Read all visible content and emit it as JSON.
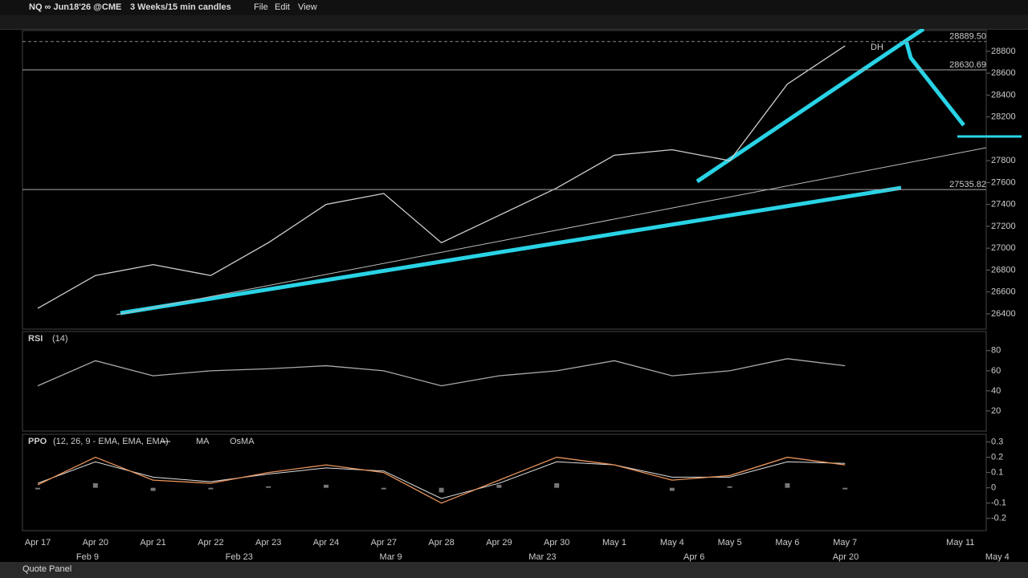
{
  "header": {
    "symbol": "NQ ∞ Jun18'26 @CME",
    "timeframe": "3 Weeks/15 min candles",
    "menu": [
      "File",
      "Edit",
      "View"
    ]
  },
  "chart_data": [
    {
      "type": "line",
      "categories": [
        "Apr 17",
        "Apr 20",
        "Apr 21",
        "Apr 22",
        "Apr 23",
        "Apr 24",
        "Apr 27",
        "Apr 28",
        "Apr 29",
        "Apr 30",
        "May 1",
        "May 4",
        "May 5",
        "May 6",
        "May 7",
        null,
        "May 11"
      ],
      "values": [
        26450,
        26750,
        26850,
        26750,
        27050,
        27400,
        27500,
        27050,
        27300,
        27550,
        27850,
        27900,
        27800,
        28500,
        28850,
        null,
        null
      ],
      "color": "#cfcfcf",
      "ylim": [
        26260,
        28990
      ],
      "yticks": [
        26400,
        26600,
        26800,
        27000,
        27200,
        27400,
        27600,
        27800,
        28200,
        28400,
        28600,
        28800
      ],
      "levels": [
        {
          "value": 28889.5,
          "label": "28889.50"
        },
        {
          "value": 28630.69,
          "label": "28630.69"
        },
        {
          "value": 27535.82,
          "label": "27535.82"
        }
      ],
      "annotations": [
        "DH"
      ]
    },
    {
      "type": "line",
      "title": "RSI",
      "subtitle": "(14)",
      "values": [
        45,
        70,
        55,
        60,
        62,
        65,
        60,
        45,
        55,
        60,
        70,
        55,
        60,
        72,
        65,
        null,
        null
      ],
      "color": "#aaaaaa",
      "ylim": [
        0,
        99
      ],
      "yticks": [
        20,
        40,
        60,
        80
      ]
    },
    {
      "type": "line",
      "title": "PPO",
      "subtitle": "(12, 26, 9 - EMA, EMA, EMA)",
      "values": [
        0.02,
        0.2,
        0.05,
        0.03,
        0.1,
        0.15,
        0.1,
        -0.1,
        0.05,
        0.2,
        0.15,
        0.05,
        0.08,
        0.2,
        0.15,
        null,
        null
      ],
      "color": "#e8935a",
      "series": [
        {
          "name": "MA",
          "color": "#e0e0e0",
          "values": [
            0.03,
            0.17,
            0.07,
            0.04,
            0.09,
            0.13,
            0.11,
            -0.07,
            0.03,
            0.17,
            0.15,
            0.07,
            0.07,
            0.17,
            0.16,
            null,
            null
          ]
        },
        {
          "name": "OsMA",
          "color": "#777777",
          "values": [
            -0.01,
            0.03,
            -0.02,
            -0.01,
            0.01,
            0.02,
            -0.01,
            -0.03,
            0.02,
            0.03,
            0,
            -0.02,
            0.01,
            0.03,
            -0.01,
            null,
            null
          ]
        }
      ],
      "ylim": [
        -0.28,
        0.35
      ],
      "yticks": [
        -0.2,
        -0.1,
        0.0,
        0.1,
        0.2,
        0.3
      ]
    }
  ],
  "overview_labels": [
    "Feb 9",
    "Feb 23",
    "Mar 9",
    "Mar 23",
    "Apr 6",
    "Apr 20",
    "May 4"
  ],
  "footer": "Quote Panel"
}
